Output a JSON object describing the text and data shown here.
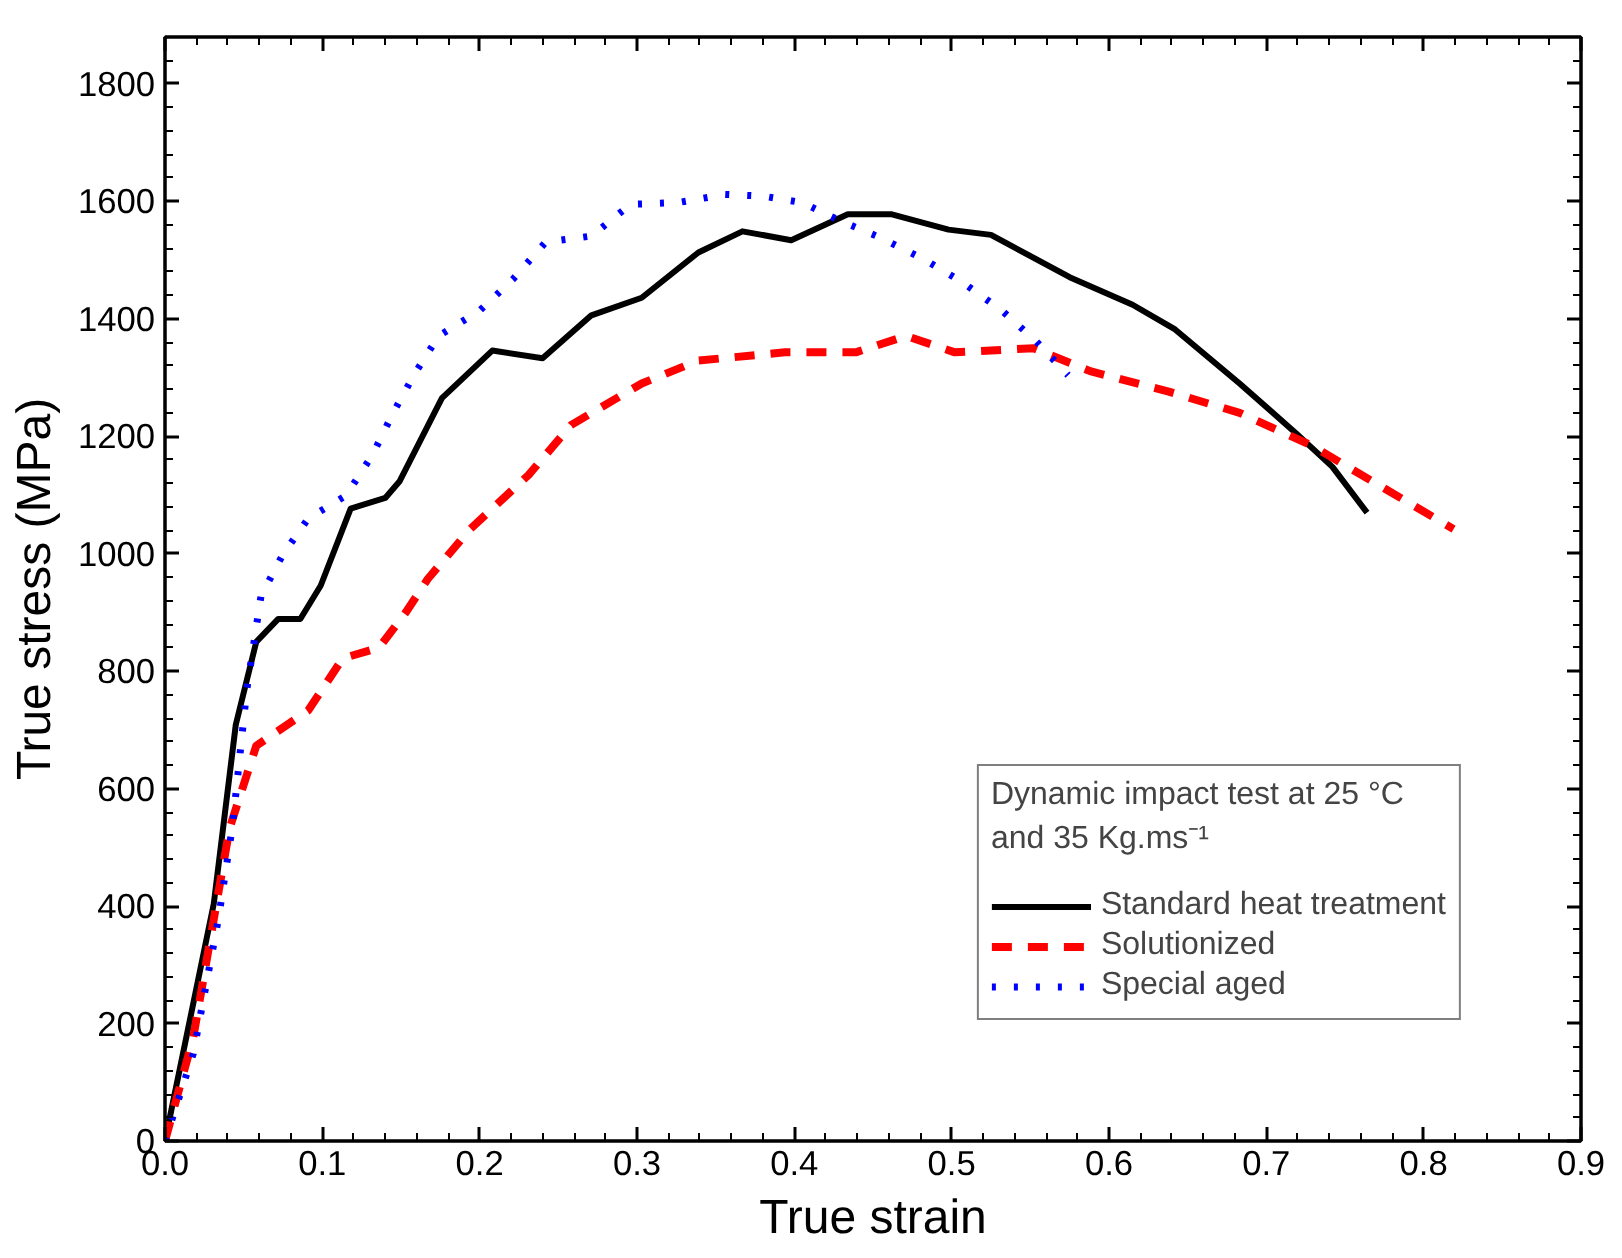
{
  "chart_data": {
    "type": "line",
    "xlabel": "True strain",
    "ylabel": "True stress (MPa)",
    "legend_title": "Dynamic impact test at 25 °C and 35 Kg.ms⁻¹",
    "xlim": [
      0,
      0.9
    ],
    "ylim": [
      0,
      1880
    ],
    "xticks": [
      {
        "value": 0,
        "label": "0.0"
      },
      0.1,
      0.2,
      0.3,
      0.4,
      0.5,
      0.6,
      0.7,
      0.8,
      0.9
    ],
    "yticks": [
      0,
      200,
      400,
      600,
      800,
      1000,
      1200,
      1400,
      1600,
      1800
    ],
    "grid": false,
    "legend": "bottom right",
    "marker": "none",
    "series": [
      {
        "name": "Standard heat treatment",
        "color": "#000000",
        "line_style": "solid",
        "x": [
          0,
          0.031,
          0.045,
          0.058,
          0.072,
          0.086,
          0.099,
          0.118,
          0.14,
          0.149,
          0.176,
          0.208,
          0.24,
          0.271,
          0.303,
          0.339,
          0.367,
          0.398,
          0.434,
          0.462,
          0.498,
          0.525,
          0.575,
          0.615,
          0.642,
          0.683,
          0.719,
          0.742,
          0.764
        ],
        "values": [
          0,
          404,
          709,
          850,
          889,
          889,
          946,
          1077,
          1095,
          1123,
          1265,
          1346,
          1333,
          1406,
          1436,
          1513,
          1549,
          1534,
          1578,
          1578,
          1552,
          1543,
          1471,
          1424,
          1382,
          1290,
          1205,
          1148,
          1070
        ]
      },
      {
        "name": "Solutionized",
        "color": "#ff0000",
        "line_style": "dashed",
        "x": [
          0,
          0.018,
          0.041,
          0.058,
          0.091,
          0.113,
          0.136,
          0.153,
          0.167,
          0.194,
          0.231,
          0.258,
          0.303,
          0.339,
          0.394,
          0.439,
          0.471,
          0.502,
          0.552,
          0.588,
          0.638,
          0.683,
          0.729,
          0.774,
          0.819
        ],
        "values": [
          0,
          177,
          532,
          673,
          733,
          822,
          840,
          900,
          957,
          1042,
          1134,
          1219,
          1290,
          1329,
          1343,
          1343,
          1371,
          1343,
          1350,
          1311,
          1276,
          1240,
          1184,
          1113,
          1042
        ]
      },
      {
        "name": "Special aged",
        "color": "#0000ff",
        "line_style": "dotted",
        "x": [
          0,
          0.018,
          0.034,
          0.043,
          0.052,
          0.061,
          0.075,
          0.091,
          0.115,
          0.132,
          0.145,
          0.159,
          0.174,
          0.2,
          0.221,
          0.242,
          0.271,
          0.296,
          0.326,
          0.356,
          0.38,
          0.405,
          0.43,
          0.455,
          0.482,
          0.506,
          0.532,
          0.554,
          0.574
        ],
        "values": [
          0,
          149,
          379,
          539,
          769,
          928,
          999,
          1060,
          1099,
          1169,
          1240,
          1308,
          1371,
          1414,
          1467,
          1531,
          1541,
          1595,
          1598,
          1612,
          1609,
          1598,
          1566,
          1538,
          1502,
          1464,
          1414,
          1361,
          1304
        ]
      }
    ]
  }
}
